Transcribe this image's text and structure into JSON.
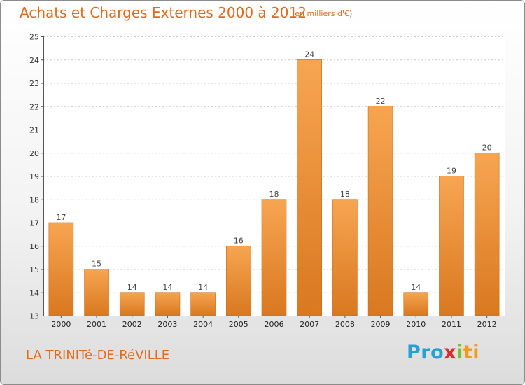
{
  "chart_data": {
    "type": "bar",
    "title": "Achats et Charges Externes 2000 à 2012",
    "subtitle": "(en milliers d'€)",
    "categories": [
      "2000",
      "2001",
      "2002",
      "2003",
      "2004",
      "2005",
      "2006",
      "2007",
      "2008",
      "2009",
      "2010",
      "2011",
      "2012"
    ],
    "values": [
      17,
      15,
      14,
      14,
      14,
      16,
      18,
      24,
      18,
      22,
      14,
      19,
      20
    ],
    "ylim": [
      13,
      25
    ],
    "yticks": [
      13,
      14,
      15,
      16,
      17,
      18,
      19,
      20,
      21,
      22,
      23,
      24,
      25
    ],
    "grid": true,
    "legend": "none",
    "bar_color_top": "#f7a552",
    "bar_color_bottom": "#d9781f"
  },
  "footer": {
    "commune": "LA TRINITé-DE-RéVILLE",
    "logo": [
      "Pro",
      "x",
      "i",
      "ti"
    ]
  }
}
